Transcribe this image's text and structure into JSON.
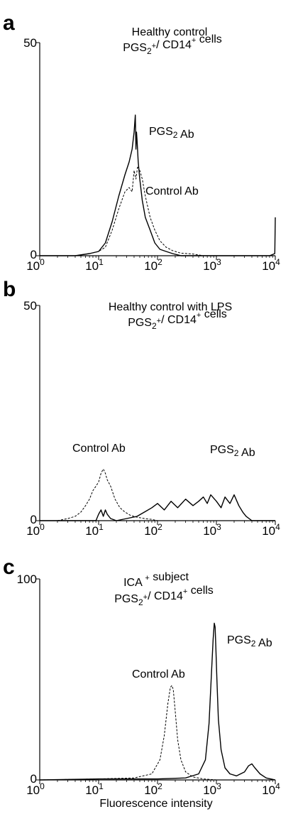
{
  "figure": {
    "xlabel": "Fluorescence intensity"
  },
  "chart_data": [
    {
      "type": "line",
      "panel_label": "a",
      "title_line1": "Healthy control",
      "title_line2": "PGS2+/ CD14+ cells",
      "x_scale": "log",
      "xlim": [
        1,
        10000
      ],
      "ylim": [
        0,
        50
      ],
      "ytick_labels": [
        "50",
        "0"
      ],
      "xtick_labels": [
        "10^0",
        "10^1",
        "10^2",
        "10^3",
        "10^4"
      ],
      "series": [
        {
          "name": "PGS2 Ab",
          "style": "solid",
          "x": [
            1,
            4,
            7,
            10,
            13,
            17,
            22,
            28,
            33,
            37,
            40,
            42,
            43,
            44,
            45,
            47,
            50,
            55,
            62,
            75,
            90,
            110,
            140,
            180,
            250,
            400,
            1000,
            3000,
            8000,
            9800,
            10000
          ],
          "y": [
            0,
            0,
            0.5,
            1,
            3,
            8,
            14,
            19,
            22,
            25,
            29,
            33,
            25,
            29,
            27,
            22,
            18,
            13,
            9,
            6,
            3,
            1.5,
            1,
            0.5,
            0,
            0,
            0,
            0,
            0,
            0.5,
            9
          ]
        },
        {
          "name": "Control Ab",
          "style": "dashed",
          "x": [
            1,
            4,
            7,
            10,
            13,
            17,
            22,
            28,
            33,
            37,
            40,
            43,
            46,
            50,
            55,
            62,
            75,
            90,
            110,
            140,
            180,
            250,
            400,
            600,
            1000,
            10000
          ],
          "y": [
            0,
            0,
            0.5,
            1,
            2,
            6,
            11,
            15,
            16,
            15,
            20,
            18,
            21,
            20,
            18,
            14,
            9,
            6,
            3.5,
            2,
            1.2,
            0.6,
            0.4,
            0,
            0,
            0
          ]
        }
      ],
      "annotations": [
        "PGS2 Ab",
        "Control Ab"
      ]
    },
    {
      "type": "line",
      "panel_label": "b",
      "title_line1": "Healthy control with LPS",
      "title_line2": "PGS2+/ CD14+ cells",
      "x_scale": "log",
      "xlim": [
        1,
        10000
      ],
      "ylim": [
        0,
        50
      ],
      "ytick_labels": [
        "50",
        "0"
      ],
      "xtick_labels": [
        "10^0",
        "10^1",
        "10^2",
        "10^3",
        "10^4"
      ],
      "series": [
        {
          "name": "Control Ab",
          "style": "dashed",
          "x": [
            1,
            2,
            3,
            4,
            5,
            6,
            7,
            8,
            9,
            10,
            11,
            12,
            13,
            14,
            16,
            19,
            23,
            28,
            35,
            45,
            60,
            80,
            100,
            200,
            1000,
            10000
          ],
          "y": [
            0,
            0,
            0.5,
            1,
            2,
            3.5,
            5,
            7,
            8,
            9,
            11,
            12,
            11,
            9.5,
            8,
            5,
            3,
            2,
            1.2,
            0.8,
            0.5,
            0.3,
            0,
            0,
            0,
            0
          ]
        },
        {
          "name": "PGS2 Ab",
          "style": "solid",
          "x": [
            1,
            9,
            10,
            11,
            12,
            13,
            14,
            16,
            20,
            30,
            45,
            60,
            80,
            100,
            130,
            170,
            220,
            300,
            400,
            500,
            600,
            700,
            800,
            1000,
            1200,
            1400,
            1700,
            2000,
            2400,
            2800,
            3200,
            4000,
            10000
          ],
          "y": [
            0,
            0,
            1.5,
            2.5,
            1,
            2.5,
            1.5,
            0.5,
            0,
            0.5,
            1,
            2,
            3,
            4,
            2.5,
            4.5,
            3,
            5,
            3.5,
            4.5,
            5.5,
            4,
            6,
            4.5,
            3,
            5.5,
            4,
            6,
            3.5,
            2,
            1,
            0,
            0
          ]
        }
      ],
      "annotations": [
        "Control Ab",
        "PGS2 Ab"
      ]
    },
    {
      "type": "line",
      "panel_label": "c",
      "title_line1": "ICA + subject",
      "title_line2": "PGS2+/ CD14+ cells",
      "x_scale": "log",
      "xlim": [
        1,
        10000
      ],
      "ylim": [
        0,
        100
      ],
      "ytick_labels": [
        "100",
        "0"
      ],
      "xtick_labels": [
        "10^0",
        "10^1",
        "10^2",
        "10^3",
        "10^4"
      ],
      "series": [
        {
          "name": "Control Ab",
          "style": "dashed",
          "x": [
            1,
            10,
            40,
            80,
            110,
            130,
            150,
            165,
            175,
            185,
            200,
            220,
            250,
            300,
            400,
            600,
            1000,
            10000
          ],
          "y": [
            0,
            0.5,
            1,
            3,
            10,
            22,
            38,
            46,
            47,
            45,
            34,
            20,
            10,
            4,
            1.5,
            0.5,
            0,
            0
          ]
        },
        {
          "name": "PGS2 Ab",
          "style": "solid",
          "x": [
            1,
            10,
            100,
            300,
            500,
            650,
            750,
            830,
            880,
            920,
            950,
            980,
            1020,
            1080,
            1200,
            1400,
            1700,
            2200,
            3000,
            3500,
            4000,
            4500,
            5500,
            7000,
            10000
          ],
          "y": [
            0,
            0.5,
            0.5,
            1,
            3,
            10,
            28,
            55,
            70,
            78,
            76,
            65,
            50,
            30,
            15,
            6,
            3,
            2,
            4,
            7,
            8,
            6,
            3,
            1,
            0
          ]
        }
      ],
      "annotations": [
        "Control Ab",
        "PGS2 Ab"
      ]
    }
  ]
}
